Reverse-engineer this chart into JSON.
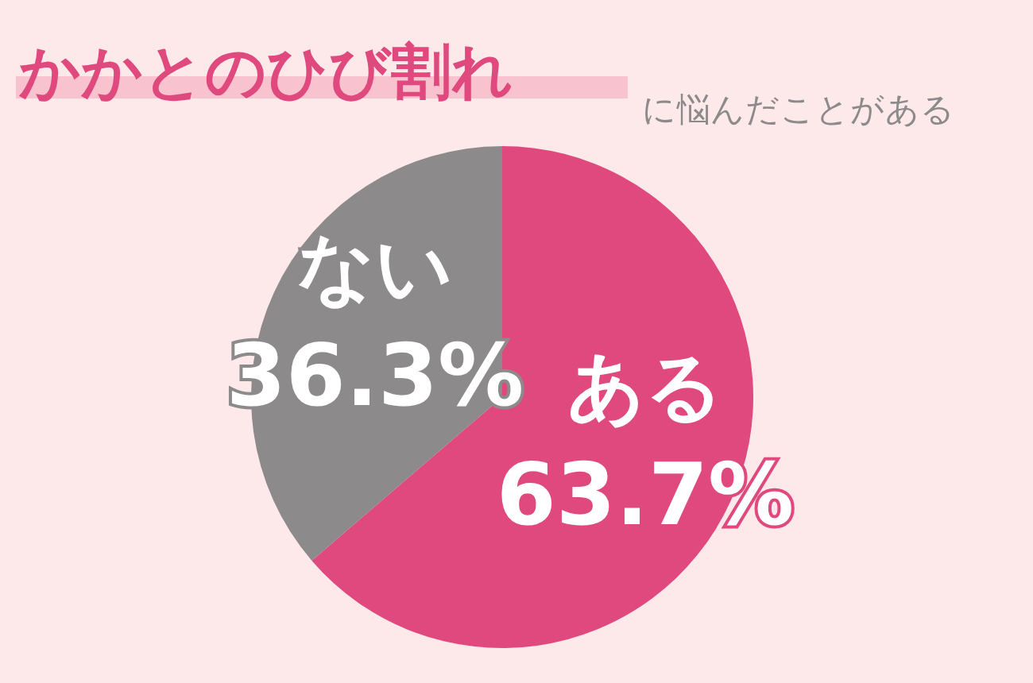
{
  "chart_data": {
    "type": "pie",
    "title": "かかとのひび割れ",
    "subtitle": "に悩んだことがある",
    "categories": [
      "ある",
      "ない"
    ],
    "values": [
      63.7,
      36.3
    ],
    "colors": [
      "#e0497e",
      "#8c8a8a"
    ],
    "value_labels": [
      "63.7%",
      "36.3%"
    ]
  }
}
